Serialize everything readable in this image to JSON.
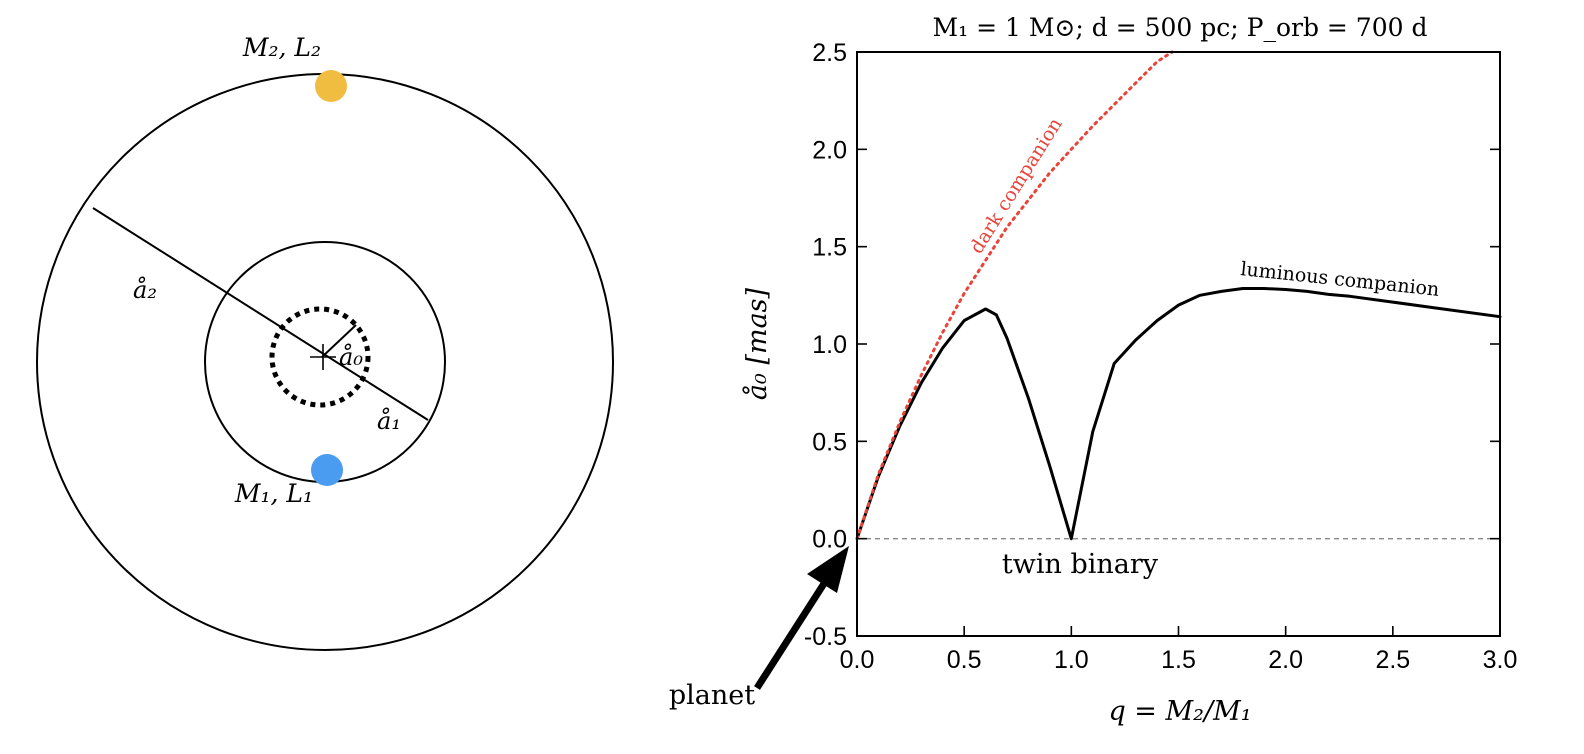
{
  "diagram": {
    "primary_label": "M₁, L₁",
    "secondary_label": "M₂, L₂",
    "a0_label": "å₀",
    "a1_label": "å₁",
    "a2_label": "å₂",
    "colors": {
      "primary": "#4a9cf0",
      "secondary": "#f0bd41",
      "line": "#000000"
    }
  },
  "chart_data": {
    "type": "line",
    "title": "M₁ = 1 M⊙;  d = 500 pc;  P_orb = 700 d",
    "xlabel": "q = M₂/M₁",
    "ylabel": "å₀ [mas]",
    "xlim": [
      0,
      3
    ],
    "ylim": [
      -0.5,
      2.5
    ],
    "xticks": [
      "0.0",
      "0.5",
      "1.0",
      "1.5",
      "2.0",
      "2.5",
      "3.0"
    ],
    "yticks": [
      "-0.5",
      "0.0",
      "0.5",
      "1.0",
      "1.5",
      "2.0",
      "2.5"
    ],
    "grid": false,
    "series": [
      {
        "name": "luminous companion",
        "color": "#000000",
        "style": "solid",
        "x": [
          0,
          0.1,
          0.2,
          0.3,
          0.4,
          0.5,
          0.6,
          0.65,
          0.7,
          0.8,
          0.9,
          1.0,
          1.1,
          1.2,
          1.3,
          1.4,
          1.5,
          1.6,
          1.7,
          1.8,
          1.9,
          2.0,
          2.1,
          2.2,
          2.3,
          2.5,
          2.7,
          3.0
        ],
        "y": [
          0,
          0.32,
          0.58,
          0.8,
          0.98,
          1.12,
          1.18,
          1.15,
          1.03,
          0.72,
          0.37,
          0,
          0.55,
          0.9,
          1.02,
          1.12,
          1.2,
          1.25,
          1.27,
          1.285,
          1.285,
          1.28,
          1.27,
          1.255,
          1.245,
          1.215,
          1.185,
          1.14
        ]
      },
      {
        "name": "dark companion",
        "color": "#e8443a",
        "style": "dotted",
        "x": [
          0,
          0.1,
          0.2,
          0.3,
          0.4,
          0.5,
          0.6,
          0.7,
          0.8,
          0.9,
          1.0,
          1.1,
          1.2,
          1.3,
          1.4,
          1.47
        ],
        "y": [
          0,
          0.33,
          0.6,
          0.84,
          1.06,
          1.26,
          1.43,
          1.6,
          1.74,
          1.88,
          2.0,
          2.12,
          2.23,
          2.34,
          2.45,
          2.5
        ]
      }
    ],
    "reference_line": {
      "y": 0,
      "style": "dashed",
      "color": "#888888"
    },
    "annotations": {
      "twin": "twin binary",
      "planet": "planet"
    }
  }
}
